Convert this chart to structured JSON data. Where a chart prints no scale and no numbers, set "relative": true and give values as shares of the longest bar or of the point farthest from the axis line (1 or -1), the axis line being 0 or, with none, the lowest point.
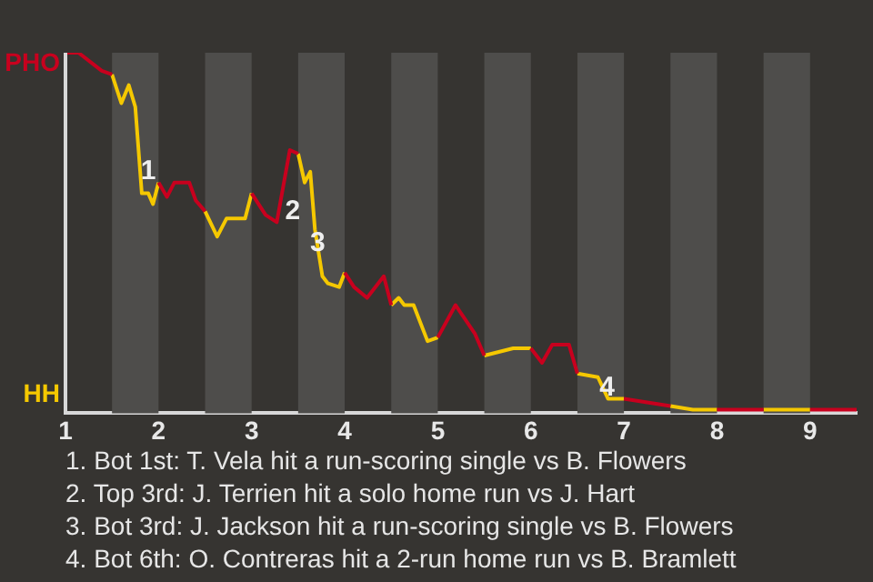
{
  "chart_data": {
    "type": "line",
    "marker": "none",
    "legend": false,
    "relative": true,
    "xlim": [
      1,
      9.5
    ],
    "xticks": [
      1,
      2,
      3,
      4,
      5,
      6,
      7,
      8,
      9
    ],
    "bands": [
      {
        "axis": "x",
        "from": 1.5,
        "to": 2,
        "color": "#4e4d4b"
      },
      {
        "axis": "x",
        "from": 2.5,
        "to": 3,
        "color": "#4e4d4b"
      },
      {
        "axis": "x",
        "from": 3.5,
        "to": 4,
        "color": "#4e4d4b"
      },
      {
        "axis": "x",
        "from": 4.5,
        "to": 5,
        "color": "#4e4d4b"
      },
      {
        "axis": "x",
        "from": 5.5,
        "to": 6,
        "color": "#4e4d4b"
      },
      {
        "axis": "x",
        "from": 6.5,
        "to": 7,
        "color": "#4e4d4b"
      },
      {
        "axis": "x",
        "from": 7.5,
        "to": 8,
        "color": "#4e4d4b"
      },
      {
        "axis": "x",
        "from": 8.5,
        "to": 9,
        "color": "#4e4d4b"
      }
    ],
    "series": [
      {
        "color": "#c8001e",
        "x": [
          1.0,
          1.14,
          1.39,
          1.5,
          1.75,
          2.0,
          2.09,
          2.17,
          2.33,
          2.4,
          2.5,
          2.75,
          3.0,
          3.15,
          3.27,
          3.41,
          3.5,
          3.75,
          4.0,
          4.1,
          4.24,
          4.42,
          4.5,
          4.75,
          5.0,
          5.19,
          5.4,
          5.5,
          5.75,
          6.0,
          6.12,
          6.23,
          6.41,
          6.5,
          6.75,
          7.0,
          7.5,
          7.75,
          8.0,
          8.5,
          8.75,
          9.0,
          9.5
        ],
        "values": [
          1.0,
          1.0,
          0.95,
          0.94,
          null,
          0.64,
          0.6,
          0.64,
          0.64,
          0.59,
          0.56,
          null,
          0.61,
          0.55,
          0.53,
          0.73,
          0.72,
          null,
          0.39,
          0.35,
          0.32,
          0.38,
          0.3,
          null,
          0.21,
          0.3,
          0.22,
          0.16,
          null,
          0.18,
          0.14,
          0.19,
          0.19,
          0.11,
          null,
          0.04,
          0.02,
          null,
          0.01,
          0.01,
          null,
          0.01,
          0.01
        ]
      },
      {
        "color": "#f5c800",
        "x": [
          1.5,
          1.6,
          1.68,
          1.75,
          1.82,
          1.89,
          1.94,
          2.0,
          2.25,
          2.5,
          2.63,
          2.73,
          2.93,
          3.0,
          3.25,
          3.5,
          3.57,
          3.63,
          3.68,
          3.76,
          3.82,
          3.94,
          4.0,
          4.25,
          4.5,
          4.58,
          4.64,
          4.74,
          4.89,
          5.0,
          5.25,
          5.5,
          5.81,
          6.0,
          6.25,
          6.5,
          6.72,
          6.83,
          7.0,
          7.25,
          7.5,
          7.74,
          8.0,
          8.25,
          8.5,
          9.0
        ],
        "values": [
          0.94,
          0.86,
          0.91,
          0.85,
          0.61,
          0.61,
          0.58,
          0.64,
          null,
          0.56,
          0.49,
          0.54,
          0.54,
          0.61,
          null,
          0.72,
          0.64,
          0.67,
          0.51,
          0.38,
          0.36,
          0.35,
          0.39,
          null,
          0.3,
          0.32,
          0.3,
          0.3,
          0.2,
          0.21,
          null,
          0.16,
          0.18,
          0.18,
          null,
          0.11,
          0.1,
          0.04,
          0.04,
          null,
          0.02,
          0.01,
          0.01,
          null,
          0.01,
          0.01
        ]
      }
    ],
    "annotations": [
      "PHO",
      "HH",
      {
        "text": "1",
        "x": 1.89,
        "y": 0.67
      },
      {
        "text": "2",
        "x": 3.44,
        "y": 0.56
      },
      {
        "text": "3",
        "x": 3.71,
        "y": 0.47
      },
      {
        "text": "4",
        "x": 6.82,
        "y": 0.07
      },
      "1. Bot 1st: T. Vela hit a run-scoring single vs B. Flowers",
      "2. Top 3rd: J. Terrien hit a solo home run vs J. Hart",
      "3. Bot 3rd: J. Jackson hit a run-scoring single vs B. Flowers",
      "4. Bot 6th: O. Contreras hit a 2-run home run vs B. Bramlett"
    ]
  }
}
